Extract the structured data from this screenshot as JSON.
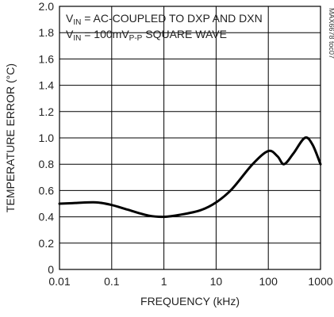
{
  "chart_data": {
    "type": "line",
    "xlabel": "FREQUENCY (kHz)",
    "ylabel": "TEMPERATURE ERROR (°C)",
    "x_scale": "log",
    "xlim": [
      0.01,
      1000
    ],
    "ylim": [
      0,
      2.0
    ],
    "x_ticks": [
      0.01,
      0.1,
      1,
      10,
      100,
      1000
    ],
    "x_tick_labels": [
      "0.01",
      "0.1",
      "1",
      "10",
      "100",
      "1000"
    ],
    "y_ticks": [
      0,
      0.2,
      0.4,
      0.6,
      0.8,
      1.0,
      1.2,
      1.4,
      1.6,
      1.8,
      2.0
    ],
    "y_tick_labels": [
      "0",
      "0.2",
      "0.4",
      "0.6",
      "0.8",
      "1.0",
      "1.2",
      "1.4",
      "1.6",
      "1.8",
      "2.0"
    ],
    "grid": true,
    "annotations": [
      {
        "main": "V",
        "sub": "IN",
        "rest": " = AC-COUPLED TO DXP AND DXN"
      },
      {
        "main": "V",
        "sub": "IN",
        "rest": " = 100mV",
        "sub2": "P-P",
        "rest2": " SQUARE WAVE"
      }
    ],
    "chart_id": "MAX6678 toc07",
    "series": [
      {
        "x": [
          0.01,
          0.02,
          0.05,
          0.1,
          0.2,
          0.5,
          1,
          2,
          5,
          10,
          20,
          50,
          100,
          150,
          200,
          300,
          500,
          700,
          1000
        ],
        "y": [
          0.5,
          0.505,
          0.51,
          0.49,
          0.455,
          0.41,
          0.4,
          0.415,
          0.45,
          0.51,
          0.61,
          0.8,
          0.9,
          0.86,
          0.8,
          0.88,
          1.0,
          0.95,
          0.8
        ]
      }
    ]
  }
}
